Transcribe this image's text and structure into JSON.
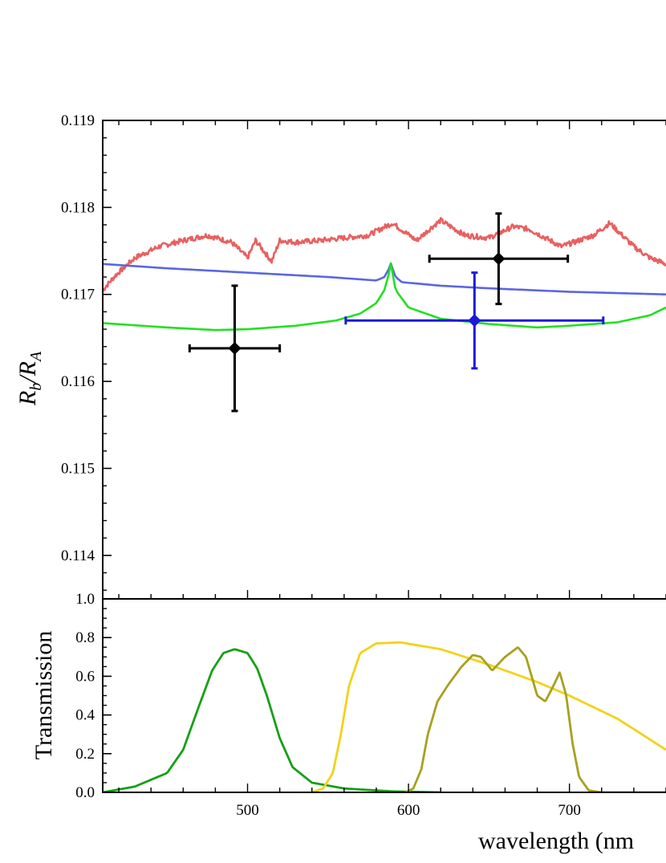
{
  "chart_data": [
    {
      "type": "line",
      "panel": "top",
      "ylabel": {
        "base1": "R",
        "sub1": "b",
        "slash": "/",
        "base2": "R",
        "sub2": "A"
      },
      "xlim": [
        410,
        760
      ],
      "ylim": [
        0.1135,
        0.119
      ],
      "y_ticks": [
        0.114,
        0.115,
        0.116,
        0.117,
        0.118,
        0.119
      ],
      "y_tick_labels": [
        "0.114",
        "0.115",
        "0.116",
        "0.117",
        "0.118",
        "0.119"
      ],
      "series": [
        {
          "color": "#e86060",
          "style": "noisy-line",
          "x": [
            410,
            418,
            430,
            445,
            460,
            475,
            490,
            500,
            505,
            515,
            520,
            530,
            545,
            560,
            575,
            590,
            605,
            615,
            620,
            635,
            650,
            665,
            675,
            695,
            715,
            725,
            740,
            750,
            760
          ],
          "values": [
            0.11705,
            0.11722,
            0.11742,
            0.11755,
            0.11762,
            0.11768,
            0.1176,
            0.11742,
            0.11762,
            0.11738,
            0.11762,
            0.1176,
            0.11762,
            0.11765,
            0.11768,
            0.11782,
            0.11762,
            0.11778,
            0.11785,
            0.11768,
            0.11765,
            0.11778,
            0.11775,
            0.11755,
            0.11768,
            0.11782,
            0.11755,
            0.11742,
            0.11735
          ]
        },
        {
          "color": "#5a66e0",
          "style": "line",
          "x": [
            410,
            450,
            500,
            550,
            580,
            585,
            588,
            589,
            590,
            592,
            596,
            620,
            650,
            700,
            760
          ],
          "values": [
            0.11735,
            0.1173,
            0.11725,
            0.1172,
            0.11716,
            0.1172,
            0.1173,
            0.11736,
            0.1173,
            0.1172,
            0.11714,
            0.1171,
            0.11707,
            0.11703,
            0.117
          ]
        },
        {
          "color": "#22e022",
          "style": "line",
          "x": [
            410,
            450,
            480,
            500,
            530,
            555,
            570,
            580,
            585,
            588,
            589,
            590,
            592,
            600,
            620,
            650,
            680,
            700,
            730,
            750,
            760
          ],
          "values": [
            0.11667,
            0.11662,
            0.11659,
            0.1166,
            0.11664,
            0.1167,
            0.11678,
            0.1169,
            0.11705,
            0.11725,
            0.11736,
            0.11725,
            0.11705,
            0.11685,
            0.11672,
            0.11666,
            0.11662,
            0.11664,
            0.11668,
            0.11676,
            0.11685
          ]
        }
      ],
      "points": [
        {
          "x": 492,
          "y": 0.11638,
          "xerr": 28,
          "yerr": 0.00072,
          "color": "#000000"
        },
        {
          "x": 656,
          "y": 0.11741,
          "xerr": 43,
          "yerr": 0.00052,
          "color": "#000000"
        },
        {
          "x": 641,
          "y": 0.1167,
          "xerr": 80,
          "yerr": 0.00055,
          "color": "#1a1ad8"
        }
      ]
    },
    {
      "type": "line",
      "panel": "bottom",
      "ylabel": "Transmission",
      "xlabel": "wavelength (nm",
      "xlim": [
        410,
        760
      ],
      "ylim": [
        0,
        1.0
      ],
      "x_ticks": [
        500,
        600,
        700
      ],
      "x_tick_labels": [
        "500",
        "600",
        "700"
      ],
      "y_ticks": [
        0.0,
        0.2,
        0.4,
        0.6,
        0.8,
        1.0
      ],
      "y_tick_labels": [
        "0.0",
        "0.2",
        "0.4",
        "0.6",
        "0.8",
        "1.0"
      ],
      "series": [
        {
          "color": "#16a016",
          "x": [
            410,
            430,
            450,
            460,
            470,
            478,
            485,
            492,
            500,
            506,
            512,
            520,
            528,
            540,
            560,
            590,
            620
          ],
          "values": [
            0.0,
            0.03,
            0.1,
            0.22,
            0.45,
            0.63,
            0.72,
            0.74,
            0.72,
            0.64,
            0.5,
            0.28,
            0.13,
            0.05,
            0.02,
            0.005,
            0.0
          ]
        },
        {
          "color": "#f2d21a",
          "x": [
            540,
            547,
            553,
            558,
            563,
            570,
            580,
            595,
            620,
            650,
            680,
            700,
            730,
            760
          ],
          "values": [
            0.0,
            0.02,
            0.1,
            0.3,
            0.55,
            0.72,
            0.77,
            0.775,
            0.74,
            0.66,
            0.57,
            0.5,
            0.38,
            0.22
          ]
        },
        {
          "color": "#a8a020",
          "x": [
            598,
            603,
            608,
            612,
            618,
            625,
            633,
            640,
            645,
            652,
            660,
            668,
            673,
            680,
            685,
            690,
            694,
            698,
            702,
            706,
            712,
            720,
            740,
            760
          ],
          "values": [
            0.0,
            0.02,
            0.12,
            0.3,
            0.47,
            0.56,
            0.65,
            0.71,
            0.7,
            0.63,
            0.7,
            0.75,
            0.7,
            0.5,
            0.47,
            0.55,
            0.62,
            0.5,
            0.25,
            0.08,
            0.01,
            0.0,
            0.0,
            0.0
          ]
        }
      ]
    }
  ]
}
